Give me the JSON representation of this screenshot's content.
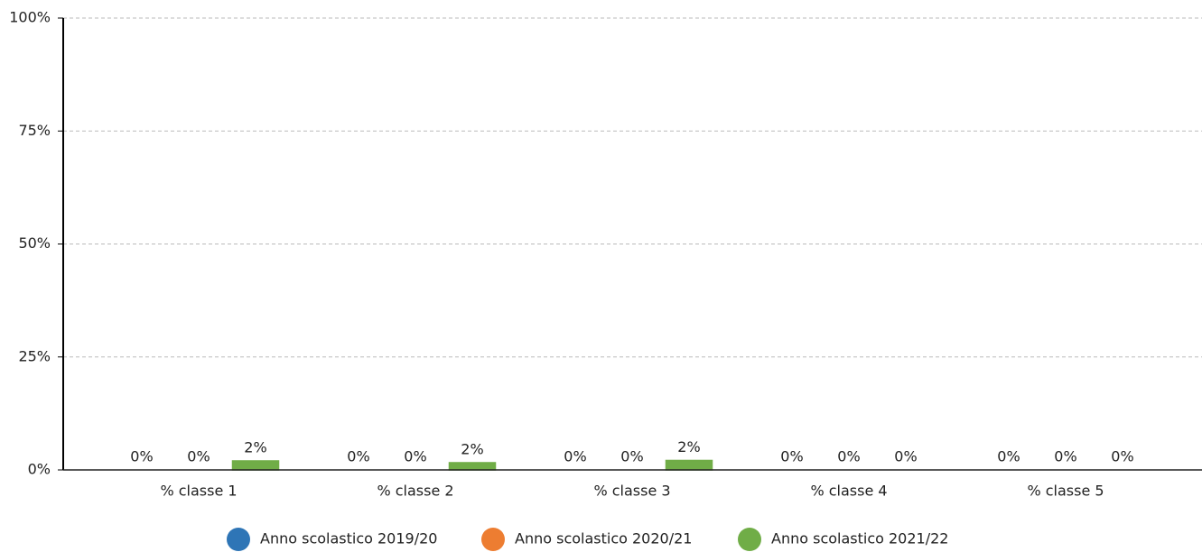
{
  "chart_data": {
    "type": "bar",
    "categories": [
      "% classe 1",
      "% classe 2",
      "% classe 3",
      "% classe 4",
      "% classe 5"
    ],
    "series": [
      {
        "name": "Anno scolastico 2019/20",
        "color": "#2e75b6",
        "values": [
          0,
          0,
          0,
          0,
          0
        ],
        "value_labels": [
          "0%",
          "0%",
          "0%",
          "0%",
          "0%"
        ]
      },
      {
        "name": "Anno scolastico 2020/21",
        "color": "#ed7d31",
        "values": [
          0,
          0,
          0,
          0,
          0
        ],
        "value_labels": [
          "0%",
          "0%",
          "0%",
          "0%",
          "0%"
        ]
      },
      {
        "name": "Anno scolastico 2021/22",
        "color": "#70ad47",
        "values": [
          2,
          1.6,
          2.1,
          0,
          0
        ],
        "value_labels": [
          "2%",
          "2%",
          "2%",
          "0%",
          "0%"
        ]
      }
    ],
    "ylim": [
      0,
      100
    ],
    "yticks": [
      {
        "value": 0,
        "label": "0%"
      },
      {
        "value": 25,
        "label": "25%"
      },
      {
        "value": 50,
        "label": "50%"
      },
      {
        "value": 75,
        "label": "75%"
      },
      {
        "value": 100,
        "label": "100%"
      }
    ],
    "grid": true,
    "legend": "bottom"
  }
}
